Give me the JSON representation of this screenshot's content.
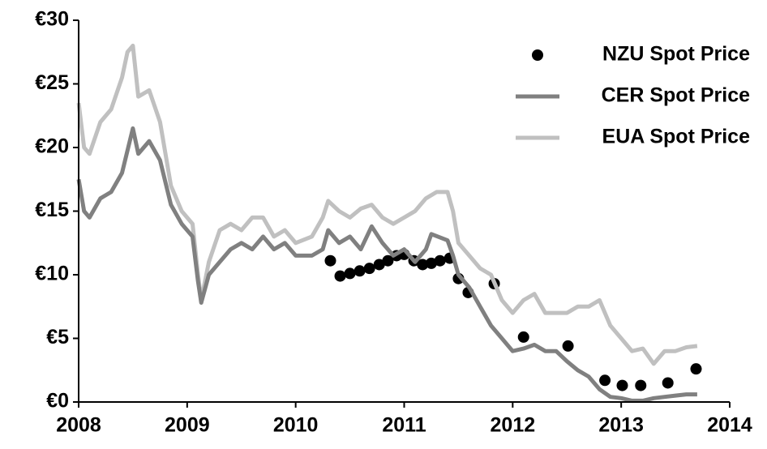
{
  "chart_data": {
    "type": "line",
    "xlim": [
      2008,
      2014
    ],
    "xticks": [
      2008,
      2009,
      2010,
      2011,
      2012,
      2013,
      2014
    ],
    "ylim": [
      0,
      30
    ],
    "yticks": [
      {
        "value": 0,
        "label": "€0"
      },
      {
        "value": 5,
        "label": "€5"
      },
      {
        "value": 10,
        "label": "€10"
      },
      {
        "value": 15,
        "label": "€15"
      },
      {
        "value": 20,
        "label": "€20"
      },
      {
        "value": 25,
        "label": "€25"
      },
      {
        "value": 30,
        "label": "€30"
      }
    ],
    "legend": "upper right",
    "series": [
      {
        "name": "NZU Spot Price",
        "type": "scatter",
        "color": "#000000",
        "x": [
          2010.32,
          2010.41,
          2010.5,
          2010.59,
          2010.68,
          2010.77,
          2010.85,
          2010.93,
          2011.0,
          2011.09,
          2011.17,
          2011.25,
          2011.33,
          2011.42,
          2011.5,
          2011.59,
          2011.83,
          2012.1,
          2012.51,
          2012.85,
          2013.01,
          2013.18,
          2013.43,
          2013.69
        ],
        "values": [
          11.1,
          9.9,
          10.1,
          10.3,
          10.5,
          10.8,
          11.1,
          11.5,
          11.6,
          11.1,
          10.8,
          10.9,
          11.1,
          11.3,
          9.7,
          8.6,
          9.3,
          5.1,
          4.4,
          1.7,
          1.3,
          1.3,
          1.5,
          2.6
        ]
      },
      {
        "name": "CER Spot Price",
        "type": "line",
        "color": "#808080",
        "x": [
          2008.0,
          2008.05,
          2008.1,
          2008.2,
          2008.3,
          2008.4,
          2008.5,
          2008.55,
          2008.65,
          2008.75,
          2008.85,
          2008.95,
          2009.05,
          2009.1,
          2009.13,
          2009.2,
          2009.3,
          2009.4,
          2009.5,
          2009.6,
          2009.7,
          2009.8,
          2009.9,
          2010.0,
          2010.15,
          2010.25,
          2010.3,
          2010.4,
          2010.5,
          2010.6,
          2010.7,
          2010.8,
          2010.9,
          2011.0,
          2011.1,
          2011.2,
          2011.25,
          2011.4,
          2011.45,
          2011.5,
          2011.6,
          2011.7,
          2011.8,
          2011.9,
          2012.0,
          2012.1,
          2012.2,
          2012.3,
          2012.4,
          2012.5,
          2012.6,
          2012.7,
          2012.8,
          2012.9,
          2013.0,
          2013.1,
          2013.2,
          2013.3,
          2013.4,
          2013.5,
          2013.6,
          2013.7
        ],
        "values": [
          17.5,
          15,
          14.5,
          16,
          16.5,
          18,
          21.5,
          19.5,
          20.5,
          19,
          15.5,
          14,
          13,
          9.5,
          7.8,
          10,
          11,
          12,
          12.5,
          12,
          13,
          12,
          12.5,
          11.5,
          11.5,
          12,
          13.5,
          12.5,
          13,
          12,
          13.8,
          12.5,
          11.5,
          12,
          11,
          12,
          13.2,
          12.7,
          11.5,
          10,
          9,
          7.5,
          6,
          5,
          4,
          4.2,
          4.5,
          4,
          4,
          3.2,
          2.5,
          2,
          1,
          0.4,
          0.3,
          0.1,
          0.1,
          0.3,
          0.4,
          0.5,
          0.6,
          0.6
        ]
      },
      {
        "name": "EUA Spot Price",
        "type": "line",
        "color": "#c0c0c0",
        "x": [
          2008.0,
          2008.05,
          2008.1,
          2008.2,
          2008.3,
          2008.4,
          2008.45,
          2008.5,
          2008.55,
          2008.65,
          2008.75,
          2008.85,
          2008.95,
          2009.05,
          2009.1,
          2009.13,
          2009.2,
          2009.3,
          2009.4,
          2009.5,
          2009.6,
          2009.7,
          2009.8,
          2009.9,
          2010.0,
          2010.15,
          2010.25,
          2010.3,
          2010.4,
          2010.5,
          2010.6,
          2010.7,
          2010.8,
          2010.9,
          2011.0,
          2011.1,
          2011.2,
          2011.3,
          2011.4,
          2011.45,
          2011.5,
          2011.6,
          2011.7,
          2011.8,
          2011.9,
          2012.0,
          2012.1,
          2012.2,
          2012.3,
          2012.4,
          2012.5,
          2012.6,
          2012.7,
          2012.8,
          2012.9,
          2013.0,
          2013.1,
          2013.2,
          2013.3,
          2013.4,
          2013.5,
          2013.6,
          2013.7
        ],
        "values": [
          23.5,
          20,
          19.5,
          22,
          23,
          25.5,
          27.5,
          28,
          24,
          24.5,
          22,
          17,
          15,
          14,
          10,
          8,
          11,
          13.5,
          14,
          13.5,
          14.5,
          14.5,
          13,
          13.5,
          12.5,
          13,
          14.5,
          15.8,
          15,
          14.5,
          15.2,
          15.5,
          14.5,
          14,
          14.5,
          15,
          16,
          16.5,
          16.5,
          15,
          12.5,
          11.5,
          10.5,
          10,
          8,
          7,
          8,
          8.5,
          7,
          7,
          7,
          7.5,
          7.5,
          8,
          6,
          5,
          4,
          4.2,
          3,
          4,
          4,
          4.3,
          4.4
        ]
      }
    ]
  }
}
